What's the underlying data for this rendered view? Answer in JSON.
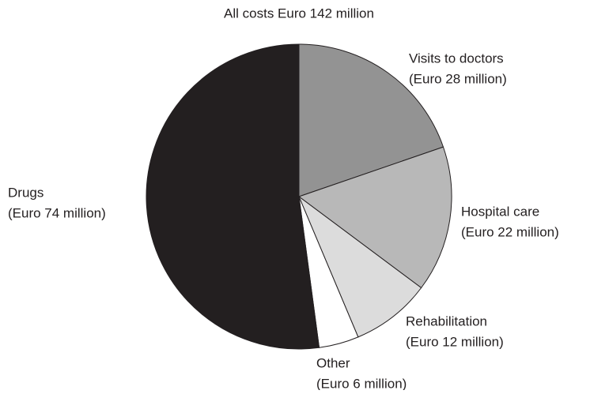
{
  "chart_data": {
    "type": "pie",
    "title": "All costs Euro 142 million",
    "categories": [
      "Visits to doctors",
      "Hospital care",
      "Rehabilitation",
      "Other",
      "Drugs"
    ],
    "values": [
      28,
      22,
      12,
      6,
      74
    ],
    "value_labels": [
      "(Euro 28 million)",
      "(Euro 22 million)",
      "(Euro 12 million)",
      "(Euro 6 million)",
      "(Euro 74 million)"
    ],
    "colors": [
      "#939393",
      "#b8b8b8",
      "#dcdcdc",
      "#ffffff",
      "#231f20"
    ]
  }
}
